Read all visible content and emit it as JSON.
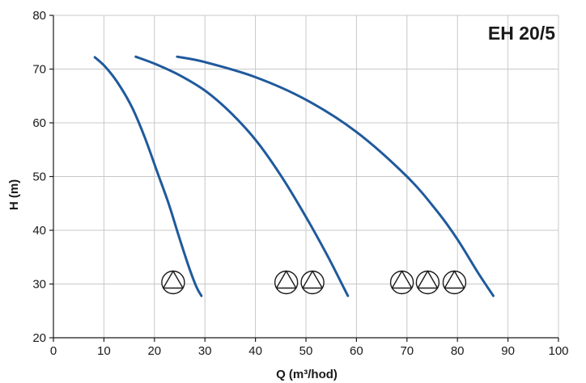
{
  "chart_data": {
    "type": "line",
    "title": "EH 20/5",
    "xlabel": "Q (m³/hod)",
    "ylabel": "H (m)",
    "xlim": [
      0,
      100
    ],
    "ylim": [
      20,
      80
    ],
    "xticks": [
      "0",
      "10",
      "20",
      "30",
      "40",
      "50",
      "60",
      "70",
      "80",
      "90",
      "100"
    ],
    "yticks": [
      "20",
      "30",
      "40",
      "50",
      "60",
      "70",
      "80"
    ],
    "grid": true,
    "curve_color": "#1f5a9c",
    "series": [
      {
        "pumps": 1,
        "x": [
          8.2,
          10.2,
          12.7,
          15.5,
          18.0,
          20.5,
          22.8,
          24.8,
          26.7,
          28.3,
          29.3
        ],
        "y": [
          72.2,
          70.5,
          67.5,
          63.0,
          57.5,
          51.0,
          45.0,
          39.0,
          33.5,
          29.5,
          27.8
        ]
      },
      {
        "pumps": 2,
        "x": [
          16.3,
          20.3,
          25.3,
          30.3,
          35.3,
          40.3,
          45.3,
          50.3,
          54.3,
          56.8,
          58.3
        ],
        "y": [
          72.3,
          70.9,
          68.7,
          65.8,
          61.7,
          56.5,
          49.8,
          42.0,
          35.2,
          30.6,
          27.8
        ]
      },
      {
        "pumps": 3,
        "x": [
          24.5,
          30.0,
          40.0,
          50.0,
          60.0,
          70.0,
          76.0,
          80.0,
          84.0,
          87.1
        ],
        "y": [
          72.3,
          71.3,
          68.5,
          64.3,
          58.3,
          50.0,
          43.5,
          38.3,
          32.2,
          27.8
        ]
      }
    ],
    "pump_markers": {
      "y": 30.3,
      "groups": [
        {
          "count": 1,
          "x": [
            23.7
          ]
        },
        {
          "count": 2,
          "x": [
            46.1,
            51.3
          ]
        },
        {
          "count": 3,
          "x": [
            69.0,
            74.1,
            79.4
          ]
        }
      ]
    }
  }
}
